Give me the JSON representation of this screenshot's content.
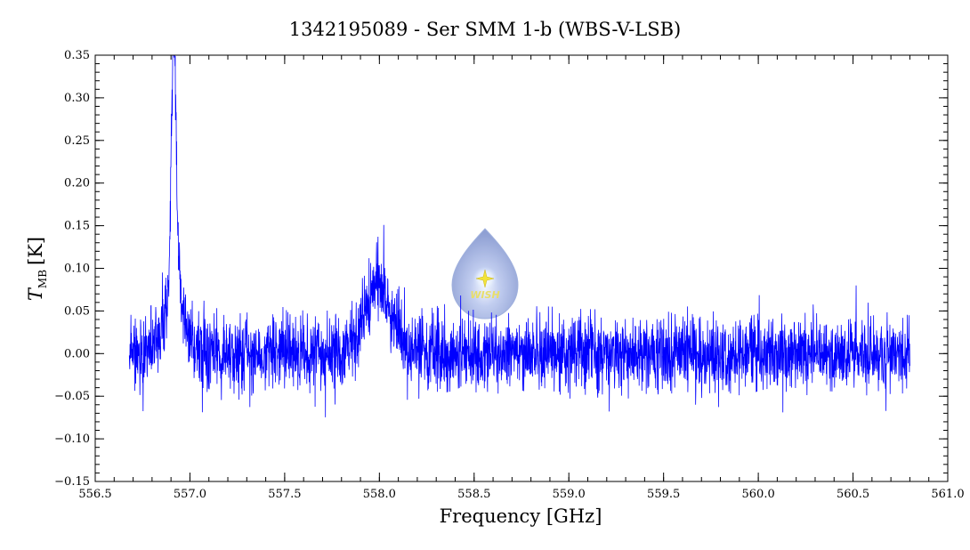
{
  "chart_data": {
    "type": "line",
    "title": "1342195089 - Ser SMM 1-b (WBS-V-LSB)",
    "xlabel": "Frequency [GHz]",
    "ylabel": "T",
    "ylabel_subscript": "MB",
    "ylabel_unit": "[K]",
    "xlim": [
      556.5,
      561.0
    ],
    "ylim": [
      -0.15,
      0.35
    ],
    "x_ticks": [
      556.5,
      557.0,
      557.5,
      558.0,
      558.5,
      559.0,
      559.5,
      560.0,
      560.5,
      561.0
    ],
    "x_tick_labels": [
      "556.5",
      "557.0",
      "557.5",
      "558.0",
      "558.5",
      "559.0",
      "559.5",
      "560.0",
      "560.5",
      "561.0"
    ],
    "y_ticks": [
      -0.15,
      -0.1,
      -0.05,
      0.0,
      0.05,
      0.1,
      0.15,
      0.2,
      0.25,
      0.3,
      0.35
    ],
    "y_tick_labels": [
      "−0.15",
      "−0.10",
      "−0.05",
      "0.00",
      "0.05",
      "0.10",
      "0.15",
      "0.20",
      "0.25",
      "0.30",
      "0.35"
    ],
    "series_color": "#0000ff",
    "grid": false,
    "x_range_data": [
      556.68,
      560.8
    ],
    "noise_rms": 0.022,
    "features": [
      {
        "center": 556.915,
        "peak": 0.3,
        "width": 0.012
      },
      {
        "center": 556.92,
        "peak": 0.08,
        "width": 0.05
      },
      {
        "center": 557.99,
        "peak": 0.08,
        "width": 0.07
      }
    ],
    "logo_text": "WISH"
  }
}
